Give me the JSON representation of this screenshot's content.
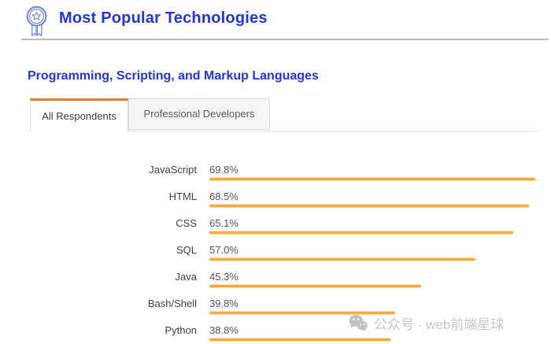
{
  "header": {
    "title": "Most Popular Technologies",
    "icon": "award-ribbon-icon"
  },
  "section": {
    "title": "Programming, Scripting, and Markup Languages"
  },
  "tabs": [
    {
      "label": "All Respondents",
      "active": true
    },
    {
      "label": "Professional Developers",
      "active": false
    }
  ],
  "chart_data": {
    "type": "bar",
    "orientation": "horizontal",
    "title": "Programming, Scripting, and Markup Languages — All Respondents",
    "categories": [
      "JavaScript",
      "HTML",
      "CSS",
      "SQL",
      "Java",
      "Bash/Shell",
      "Python"
    ],
    "values": [
      69.8,
      68.5,
      65.1,
      57.0,
      45.3,
      39.8,
      38.8
    ],
    "value_labels": [
      "69.8%",
      "68.5%",
      "65.1%",
      "57.0%",
      "45.3%",
      "39.8%",
      "38.8%"
    ],
    "xlim": [
      0,
      100
    ],
    "grid": false,
    "legend": false,
    "bar_color": "#F9A93D"
  },
  "watermark": {
    "icon": "wechat-icon",
    "text": "公众号 · web前端星球"
  },
  "colors": {
    "heading_blue": "#2334E0",
    "icon_blue": "#7C8CE4",
    "tab_accent_orange": "#E8782B",
    "bar_orange": "#F9A93D",
    "watermark_gray": "#C1C1C1"
  }
}
